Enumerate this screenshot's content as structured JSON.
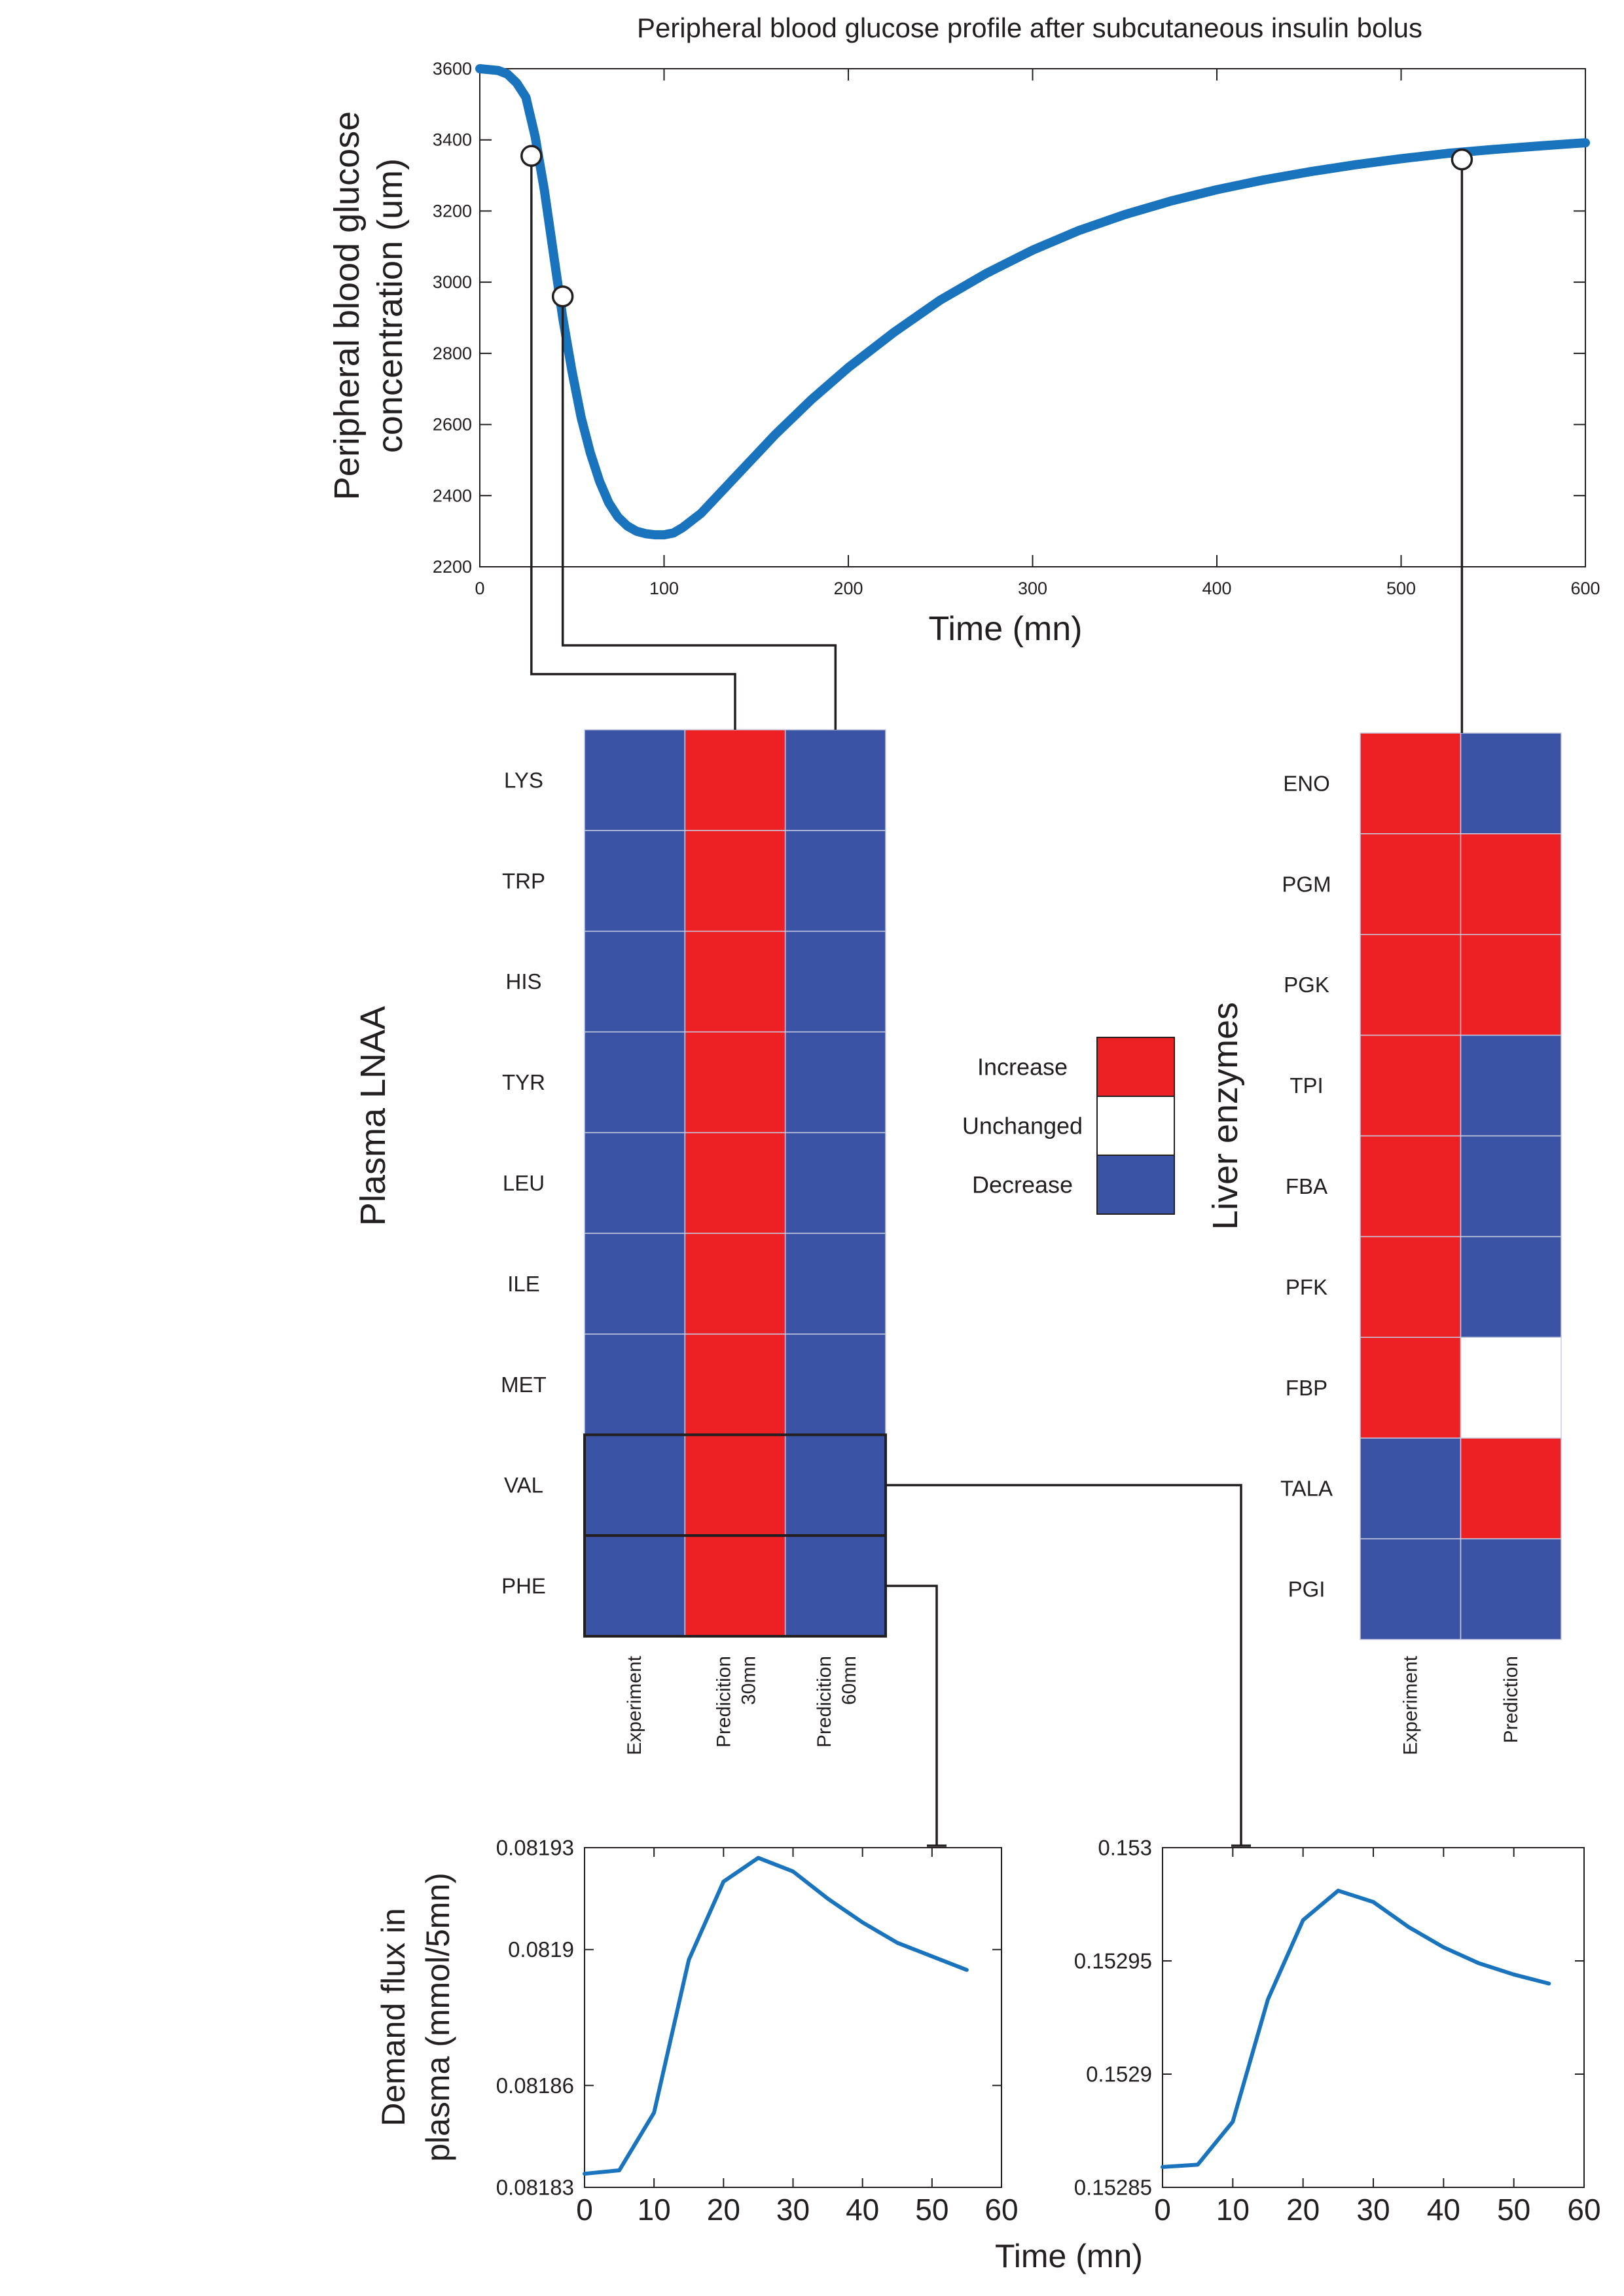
{
  "colors": {
    "curve": "#1a74bd",
    "increase": "#ed2024",
    "decrease": "#3a53a4",
    "unchanged": "#ffffff",
    "axis": "#231f20"
  },
  "chart_data": [
    {
      "type": "line",
      "title": "Peripheral blood glucose profile after subcutaneous insulin bolus",
      "xlabel": "Time (mn)",
      "ylabel": "Peripheral blood glucose concentration (um)",
      "ylabel_lines": [
        "Peripheral blood glucose",
        "concentration (um)"
      ],
      "xlim": [
        0,
        600
      ],
      "ylim": [
        2200,
        3600
      ],
      "xticks": [
        0,
        100,
        200,
        300,
        400,
        500,
        600
      ],
      "yticks": [
        2200,
        2400,
        2600,
        2800,
        3000,
        3200,
        3400,
        3600
      ],
      "xtick_labels": [
        "0",
        "100",
        "200",
        "300",
        "400",
        "500",
        "600"
      ],
      "ytick_labels": [
        "2200",
        "2400",
        "2600",
        "2800",
        "3000",
        "3200",
        "3400",
        "3600"
      ],
      "series": [
        {
          "x": [
            0,
            10,
            15,
            20,
            25,
            30,
            35,
            40,
            45,
            50,
            55,
            60,
            65,
            70,
            75,
            80,
            85,
            90,
            95,
            100,
            105,
            110,
            120,
            130,
            140,
            150,
            160,
            180,
            200,
            225,
            250,
            275,
            300,
            325,
            350,
            375,
            400,
            425,
            450,
            475,
            500,
            525,
            550,
            575,
            600
          ],
          "y": [
            3600,
            3595,
            3585,
            3560,
            3520,
            3410,
            3260,
            3080,
            2900,
            2750,
            2620,
            2520,
            2440,
            2380,
            2340,
            2315,
            2300,
            2293,
            2290,
            2290,
            2295,
            2310,
            2350,
            2405,
            2460,
            2515,
            2570,
            2670,
            2760,
            2860,
            2950,
            3025,
            3090,
            3145,
            3190,
            3228,
            3260,
            3287,
            3310,
            3330,
            3347,
            3362,
            3373,
            3383,
            3392
          ]
        }
      ],
      "markers": [
        {
          "x": 28,
          "y": 3355
        },
        {
          "x": 45,
          "y": 2960
        },
        {
          "x": 533,
          "y": 3345
        }
      ]
    },
    {
      "type": "heatmap",
      "title": "Plasma LNAA",
      "rows": [
        "LYS",
        "TRP",
        "HIS",
        "TYR",
        "LEU",
        "ILE",
        "MET",
        "VAL",
        "PHE"
      ],
      "columns": [
        "Experiment",
        "Predicition 30mn",
        "Predicition 60mn"
      ],
      "column_label_lines": [
        [
          "Experiment"
        ],
        [
          "Predicition",
          "30mn"
        ],
        [
          "Predicition",
          "60mn"
        ]
      ],
      "values": [
        [
          "decrease",
          "increase",
          "decrease"
        ],
        [
          "decrease",
          "increase",
          "decrease"
        ],
        [
          "decrease",
          "increase",
          "decrease"
        ],
        [
          "decrease",
          "increase",
          "decrease"
        ],
        [
          "decrease",
          "increase",
          "decrease"
        ],
        [
          "decrease",
          "increase",
          "decrease"
        ],
        [
          "decrease",
          "increase",
          "decrease"
        ],
        [
          "decrease",
          "increase",
          "decrease"
        ],
        [
          "decrease",
          "increase",
          "decrease"
        ]
      ]
    },
    {
      "type": "heatmap",
      "title": "Liver enzymes",
      "rows": [
        "ENO",
        "PGM",
        "PGK",
        "TPI",
        "FBA",
        "PFK",
        "FBP",
        "TALA",
        "PGI"
      ],
      "columns": [
        "Experiment",
        "Prediction"
      ],
      "values": [
        [
          "increase",
          "decrease"
        ],
        [
          "increase",
          "increase"
        ],
        [
          "increase",
          "increase"
        ],
        [
          "increase",
          "decrease"
        ],
        [
          "increase",
          "decrease"
        ],
        [
          "increase",
          "decrease"
        ],
        [
          "increase",
          "unchanged"
        ],
        [
          "decrease",
          "increase"
        ],
        [
          "decrease",
          "decrease"
        ]
      ]
    },
    {
      "type": "line",
      "title": "",
      "xlabel": "",
      "ylabel": "Demand flux in plasma (mmol/5mn)",
      "ylabel_lines": [
        "Demand flux in",
        "plasma (mmol/5mn)"
      ],
      "xlim": [
        0,
        60
      ],
      "ylim": [
        0.08183,
        0.08193
      ],
      "xticks": [
        0,
        10,
        20,
        30,
        40,
        50,
        60
      ],
      "yticks": [
        0.08183,
        0.08186,
        0.0819,
        0.08193
      ],
      "xtick_labels": [
        "0",
        "10",
        "20",
        "30",
        "40",
        "50",
        "60"
      ],
      "ytick_labels": [
        "0.08183",
        "0.08186",
        "0.0819",
        "0.08193"
      ],
      "series": [
        {
          "x": [
            0,
            5,
            10,
            15,
            20,
            25,
            30,
            35,
            40,
            45,
            50,
            55
          ],
          "y": [
            0.081834,
            0.081835,
            0.081852,
            0.081897,
            0.08192,
            0.081927,
            0.081923,
            0.081915,
            0.081908,
            0.081902,
            0.081898,
            0.081894
          ]
        }
      ]
    },
    {
      "type": "line",
      "title": "",
      "xlabel": "Time (mn)",
      "ylabel": "",
      "xlim": [
        0,
        60
      ],
      "ylim": [
        0.15285,
        0.153
      ],
      "xticks": [
        0,
        10,
        20,
        30,
        40,
        50,
        60
      ],
      "yticks": [
        0.15285,
        0.1529,
        0.15295,
        0.153
      ],
      "xtick_labels": [
        "0",
        "10",
        "20",
        "30",
        "40",
        "50",
        "60"
      ],
      "ytick_labels": [
        "0.15285",
        "0.1529",
        "0.15295",
        "0.153"
      ],
      "series": [
        {
          "x": [
            0,
            5,
            10,
            15,
            20,
            25,
            30,
            35,
            40,
            45,
            50,
            55
          ],
          "y": [
            0.152859,
            0.15286,
            0.152879,
            0.152933,
            0.152968,
            0.152981,
            0.152976,
            0.152965,
            0.152956,
            0.152949,
            0.152944,
            0.15294
          ]
        }
      ]
    }
  ],
  "legend": {
    "items": [
      {
        "label": "Increase",
        "key": "increase"
      },
      {
        "label": "Unchanged",
        "key": "unchanged"
      },
      {
        "label": "Decrease",
        "key": "decrease"
      }
    ]
  }
}
